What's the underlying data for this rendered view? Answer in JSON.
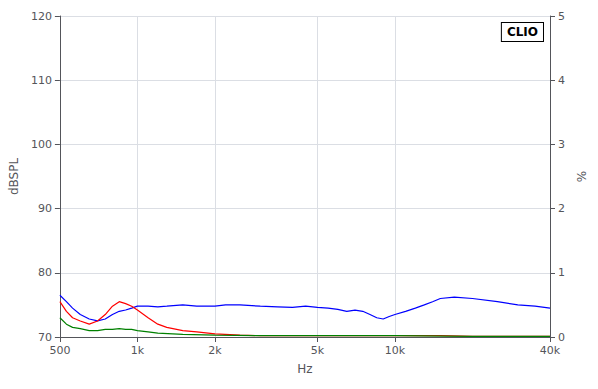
{
  "chart_data": {
    "type": "line",
    "xlabel": "Hz",
    "ylabel": "dBSPL",
    "y2label": "%",
    "annotations": [
      "CLIO"
    ],
    "log": "x",
    "grid": true,
    "xlim": [
      500,
      40000
    ],
    "xticks": [
      500,
      {
        "value": 1000,
        "label": "1k"
      },
      {
        "value": 2000,
        "label": "2k"
      },
      {
        "value": 5000,
        "label": "5k"
      },
      {
        "value": 10000,
        "label": "10k"
      },
      {
        "value": 40000,
        "label": "40k"
      }
    ],
    "ylim": [
      70,
      120
    ],
    "yticks": [
      70,
      80,
      90,
      100,
      110,
      120
    ],
    "y2lim": [
      0,
      5
    ],
    "y2ticks": [
      0,
      1,
      2,
      3,
      4,
      5
    ],
    "series": [
      {
        "color": "#0000ff",
        "x": [
          500,
          530,
          560,
          600,
          650,
          700,
          750,
          800,
          850,
          900,
          950,
          1000,
          1100,
          1200,
          1300,
          1500,
          1700,
          2000,
          2200,
          2500,
          3000,
          3500,
          4000,
          4500,
          5000,
          5500,
          6000,
          6500,
          7000,
          7500,
          8000,
          8500,
          9000,
          9500,
          10000,
          11000,
          12000,
          13000,
          14000,
          15000,
          17000,
          20000,
          25000,
          30000,
          35000,
          40000
        ],
        "values": [
          76.5,
          75.5,
          74.5,
          73.5,
          72.8,
          72.5,
          72.8,
          73.5,
          74.0,
          74.2,
          74.5,
          74.8,
          74.8,
          74.7,
          74.8,
          75.0,
          74.8,
          74.8,
          75.0,
          75.0,
          74.8,
          74.7,
          74.6,
          74.8,
          74.6,
          74.5,
          74.3,
          74.0,
          74.2,
          74.0,
          73.5,
          73.0,
          72.8,
          73.2,
          73.5,
          74.0,
          74.5,
          75.0,
          75.5,
          76.0,
          76.2,
          76.0,
          75.5,
          75.0,
          74.8,
          74.5
        ]
      },
      {
        "color": "#ff0000",
        "x": [
          500,
          530,
          560,
          600,
          650,
          700,
          750,
          800,
          850,
          900,
          950,
          1000,
          1100,
          1200,
          1300,
          1500,
          1700,
          2000,
          2500,
          3000,
          4000,
          5000,
          7000,
          10000,
          15000,
          20000,
          30000,
          40000
        ],
        "values": [
          75.5,
          74.0,
          73.0,
          72.5,
          72.0,
          72.5,
          73.5,
          74.8,
          75.5,
          75.2,
          74.8,
          74.2,
          73.0,
          72.0,
          71.5,
          71.0,
          70.8,
          70.5,
          70.3,
          70.2,
          70.2,
          70.2,
          70.2,
          70.2,
          70.2,
          70.1,
          70.1,
          70.1
        ]
      },
      {
        "color": "#008000",
        "x": [
          500,
          530,
          560,
          600,
          650,
          700,
          750,
          800,
          850,
          900,
          950,
          1000,
          1100,
          1200,
          1500,
          2000,
          3000,
          5000,
          10000,
          20000,
          40000
        ],
        "values": [
          73.0,
          72.0,
          71.5,
          71.3,
          71.0,
          71.0,
          71.2,
          71.2,
          71.3,
          71.2,
          71.2,
          71.0,
          70.8,
          70.6,
          70.4,
          70.3,
          70.2,
          70.2,
          70.2,
          70.1,
          70.1
        ]
      }
    ]
  }
}
